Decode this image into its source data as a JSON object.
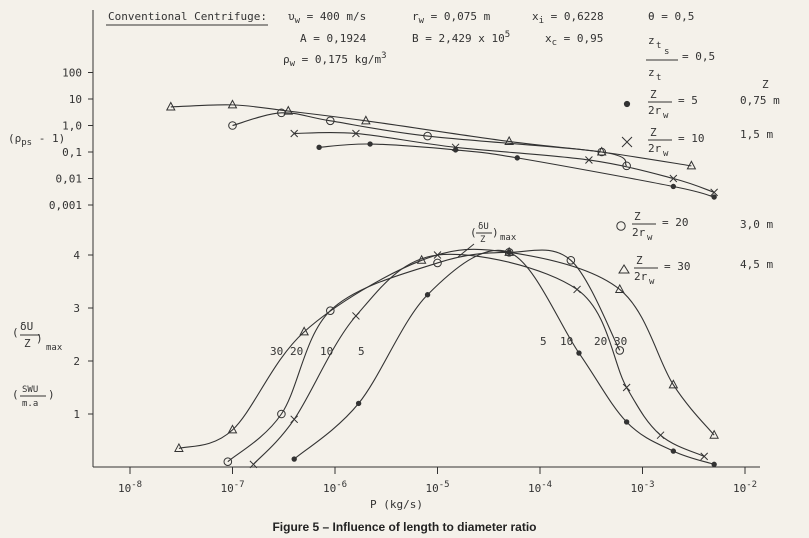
{
  "caption": "Figure 5 – Influence of length to diameter ratio",
  "header": {
    "title": "Conventional Centrifuge:",
    "params": [
      {
        "sym": "υ",
        "sub": "w",
        "rest": " = 400 m/s"
      },
      {
        "sym": "r",
        "sub": "w",
        "rest": " = 0,075 m"
      },
      {
        "sym": "x",
        "sub": "i",
        "rest": " = 0,6228"
      },
      {
        "sym": "θ",
        "sub": "",
        "rest": " = 0,5"
      },
      {
        "sym": "A",
        "sub": "",
        "rest": " = 0,1924"
      },
      {
        "sym": "B",
        "sub": "",
        "rest": " = 2,429 x 10"
      },
      {
        "sym": "x",
        "sub": "c",
        "rest": " = 0,95"
      },
      {
        "sym": "ρ",
        "sub": "w",
        "rest": " = 0,175 kg/m"
      },
      {
        "sym": "z",
        "sub": "t",
        "rest": " = 0,5"
      }
    ],
    "b_exp": "5",
    "rho_exp": "3",
    "zt_sub_num": "s",
    "zt_den": "z"
  },
  "legend": {
    "z_header": "Z",
    "entries": [
      {
        "ratio": "5",
        "z": "0,75 m",
        "marker": "dot"
      },
      {
        "ratio": "10",
        "z": "1,5 m",
        "marker": "x"
      },
      {
        "ratio": "20",
        "z": "3,0 m",
        "marker": "circle"
      },
      {
        "ratio": "30",
        "z": "4,5 m",
        "marker": "triangle"
      }
    ],
    "frac_num": "Z",
    "frac_den": "2r",
    "frac_den_sub": "w"
  },
  "upper_ylabel": {
    "main": "(ρ",
    "sub": "ps",
    "tail": " - 1)"
  },
  "upper_ticks": [
    "100",
    "10",
    "1,0",
    "0,1",
    "0,01",
    "0,001"
  ],
  "lower_ylabel_a": {
    "num": "δU",
    "den": "Z",
    "sub": "max"
  },
  "lower_ylabel_b": {
    "num": "SWU",
    "den": "m.a"
  },
  "lower_ticks": [
    "1",
    "2",
    "3",
    "4"
  ],
  "curve_label": {
    "num": "δU",
    "den": "Z",
    "sub": "max"
  },
  "curve_number_labels_left": [
    "30",
    "20",
    "10",
    "5"
  ],
  "curve_number_labels_right": [
    "5",
    "10",
    "20",
    "30"
  ],
  "xlabel": "P (kg/s)",
  "x_ticks": [
    {
      "base": "10",
      "exp": "-8",
      "p": -8
    },
    {
      "base": "10",
      "exp": "-7",
      "p": -7
    },
    {
      "base": "10",
      "exp": "-6",
      "p": -6
    },
    {
      "base": "10",
      "exp": "-5",
      "p": -5
    },
    {
      "base": "10",
      "exp": "-4",
      "p": -4
    },
    {
      "base": "10",
      "exp": "-3",
      "p": -3
    },
    {
      "base": "10",
      "exp": "-2",
      "p": -2
    }
  ],
  "chart_data": [
    {
      "type": "line",
      "title": "",
      "xlabel": "P (kg/s)",
      "ylabel": "(ρps - 1)",
      "xscale": "log",
      "yscale": "log",
      "xlim": [
        1e-08,
        0.01
      ],
      "ylim": [
        0.001,
        100
      ],
      "series": [
        {
          "name": "Z/2rw = 30",
          "marker": "triangle",
          "x": [
            2.5e-08,
            1e-07,
            3.5e-07,
            2e-06,
            5e-05,
            0.0004,
            0.003
          ],
          "y": [
            5,
            6,
            3.5,
            1.5,
            0.25,
            0.1,
            0.03
          ]
        },
        {
          "name": "Z/2rw = 20",
          "marker": "circle",
          "x": [
            1e-07,
            3e-07,
            9e-07,
            8e-06,
            0.0004,
            0.0007
          ],
          "y": [
            1,
            3,
            1.5,
            0.4,
            0.1,
            0.03
          ]
        },
        {
          "name": "Z/2rw = 10",
          "marker": "x",
          "x": [
            4e-07,
            1.6e-06,
            1.5e-05,
            0.0003,
            0.002,
            0.005
          ],
          "y": [
            0.5,
            0.5,
            0.15,
            0.05,
            0.01,
            0.003
          ]
        },
        {
          "name": "Z/2rw = 5",
          "marker": "dot",
          "x": [
            7e-07,
            2.2e-06,
            1.5e-05,
            6e-05,
            0.002,
            0.005
          ],
          "y": [
            0.15,
            0.2,
            0.12,
            0.06,
            0.005,
            0.002
          ]
        }
      ]
    },
    {
      "type": "line",
      "title": "",
      "xlabel": "P (kg/s)",
      "ylabel": "(δU/Z)max",
      "xscale": "log",
      "xlim": [
        1e-08,
        0.01
      ],
      "ylim": [
        0,
        4
      ],
      "series": [
        {
          "name": "Z/2rw = 30",
          "marker": "triangle",
          "x": [
            3e-08,
            1e-07,
            5e-07,
            7e-06,
            5e-05,
            0.0006,
            0.002,
            0.005
          ],
          "y": [
            0.35,
            0.7,
            2.55,
            3.9,
            4.05,
            3.35,
            1.55,
            0.6
          ]
        },
        {
          "name": "Z/2rw = 20",
          "marker": "circle",
          "x": [
            9e-08,
            3e-07,
            9e-07,
            1e-05,
            5e-05,
            0.0002,
            0.0006
          ],
          "y": [
            0.1,
            1,
            2.95,
            3.85,
            4.05,
            3.9,
            2.2
          ]
        },
        {
          "name": "Z/2rw = 10",
          "marker": "x",
          "x": [
            1.6e-07,
            4e-07,
            1.6e-06,
            1e-05,
            0.00023,
            0.0007,
            0.0015,
            0.004
          ],
          "y": [
            0.05,
            0.9,
            2.85,
            4,
            3.35,
            1.5,
            0.6,
            0.2
          ]
        },
        {
          "name": "Z/2rw = 5",
          "marker": "dot",
          "x": [
            4e-07,
            1.7e-06,
            8e-06,
            5e-05,
            0.00024,
            0.0007,
            0.002,
            0.005
          ],
          "y": [
            0.15,
            1.2,
            3.25,
            4.05,
            2.15,
            0.85,
            0.3,
            0.05
          ]
        }
      ]
    }
  ]
}
